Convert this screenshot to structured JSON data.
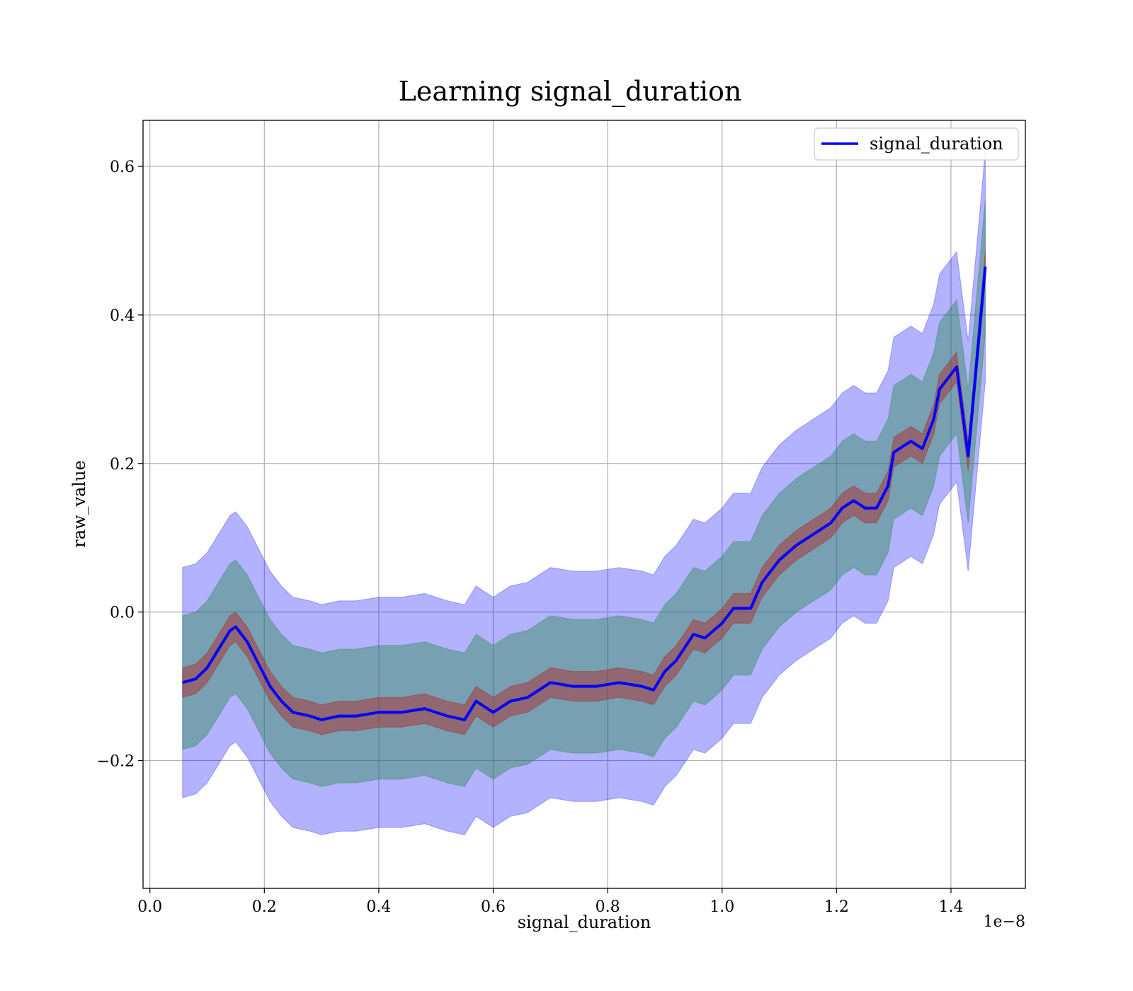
{
  "chart_data": {
    "type": "line",
    "title": "Learning signal_duration",
    "xlabel": "signal_duration",
    "ylabel": "raw_value",
    "x_offset_label": "1e−8",
    "xlim": [
      -0.012,
      1.53
    ],
    "ylim": [
      -0.372,
      0.662
    ],
    "x_ticks": [
      0.0,
      0.2,
      0.4,
      0.6,
      0.8,
      1.0,
      1.2,
      1.4
    ],
    "x_tick_labels": [
      "0.0",
      "0.2",
      "0.4",
      "0.6",
      "0.8",
      "1.0",
      "1.2",
      "1.4"
    ],
    "y_ticks": [
      -0.2,
      0.0,
      0.2,
      0.4,
      0.6
    ],
    "y_tick_labels": [
      "−0.2",
      "0.0",
      "0.2",
      "0.4",
      "0.6"
    ],
    "grid": true,
    "legend": {
      "position": "upper right",
      "entries": [
        "signal_duration"
      ]
    },
    "colors": {
      "line": "#0000ff",
      "band_outer": "#0000ff",
      "band_middle": "#2e8b57",
      "band_inner": "#b22222"
    },
    "series": [
      {
        "name": "signal_duration",
        "x": [
          0.057,
          0.08,
          0.1,
          0.12,
          0.14,
          0.15,
          0.17,
          0.19,
          0.21,
          0.23,
          0.25,
          0.28,
          0.3,
          0.33,
          0.36,
          0.4,
          0.44,
          0.48,
          0.52,
          0.55,
          0.57,
          0.6,
          0.63,
          0.66,
          0.7,
          0.74,
          0.78,
          0.82,
          0.86,
          0.88,
          0.9,
          0.92,
          0.95,
          0.97,
          1.0,
          1.02,
          1.05,
          1.07,
          1.1,
          1.13,
          1.16,
          1.19,
          1.21,
          1.23,
          1.25,
          1.27,
          1.29,
          1.3,
          1.33,
          1.35,
          1.37,
          1.38,
          1.41,
          1.43,
          1.46
        ],
        "mean": [
          -0.095,
          -0.09,
          -0.075,
          -0.05,
          -0.025,
          -0.02,
          -0.04,
          -0.07,
          -0.1,
          -0.12,
          -0.135,
          -0.14,
          -0.145,
          -0.14,
          -0.14,
          -0.135,
          -0.135,
          -0.13,
          -0.14,
          -0.145,
          -0.12,
          -0.135,
          -0.12,
          -0.115,
          -0.095,
          -0.1,
          -0.1,
          -0.095,
          -0.1,
          -0.105,
          -0.08,
          -0.065,
          -0.03,
          -0.035,
          -0.015,
          0.005,
          0.005,
          0.04,
          0.07,
          0.09,
          0.105,
          0.12,
          0.14,
          0.15,
          0.14,
          0.14,
          0.17,
          0.215,
          0.23,
          0.22,
          0.26,
          0.3,
          0.33,
          0.21,
          0.465
        ],
        "inner_half_width": [
          0.02,
          0.02,
          0.02,
          0.02,
          0.02,
          0.02,
          0.02,
          0.02,
          0.02,
          0.02,
          0.02,
          0.02,
          0.02,
          0.02,
          0.02,
          0.02,
          0.02,
          0.02,
          0.02,
          0.02,
          0.02,
          0.02,
          0.02,
          0.02,
          0.02,
          0.02,
          0.02,
          0.02,
          0.02,
          0.02,
          0.02,
          0.02,
          0.02,
          0.02,
          0.02,
          0.02,
          0.02,
          0.02,
          0.02,
          0.02,
          0.02,
          0.02,
          0.02,
          0.02,
          0.02,
          0.02,
          0.02,
          0.02,
          0.02,
          0.02,
          0.02,
          0.02,
          0.02,
          0.02,
          0.02
        ],
        "middle_half_width": [
          0.09,
          0.09,
          0.09,
          0.09,
          0.09,
          0.09,
          0.09,
          0.09,
          0.09,
          0.09,
          0.09,
          0.09,
          0.09,
          0.09,
          0.09,
          0.09,
          0.09,
          0.09,
          0.09,
          0.09,
          0.09,
          0.09,
          0.09,
          0.09,
          0.09,
          0.09,
          0.09,
          0.09,
          0.09,
          0.09,
          0.09,
          0.09,
          0.09,
          0.09,
          0.09,
          0.09,
          0.09,
          0.09,
          0.09,
          0.09,
          0.09,
          0.09,
          0.09,
          0.09,
          0.09,
          0.09,
          0.09,
          0.09,
          0.09,
          0.09,
          0.09,
          0.09,
          0.09,
          0.09,
          0.09
        ],
        "outer_half_width": [
          0.155,
          0.155,
          0.155,
          0.155,
          0.155,
          0.155,
          0.155,
          0.155,
          0.155,
          0.155,
          0.155,
          0.155,
          0.155,
          0.155,
          0.155,
          0.155,
          0.155,
          0.155,
          0.155,
          0.155,
          0.155,
          0.155,
          0.155,
          0.155,
          0.155,
          0.155,
          0.155,
          0.155,
          0.155,
          0.155,
          0.155,
          0.155,
          0.155,
          0.155,
          0.155,
          0.155,
          0.155,
          0.155,
          0.155,
          0.155,
          0.155,
          0.155,
          0.155,
          0.155,
          0.155,
          0.155,
          0.155,
          0.155,
          0.155,
          0.155,
          0.155,
          0.155,
          0.155,
          0.155,
          0.155
        ]
      }
    ]
  }
}
